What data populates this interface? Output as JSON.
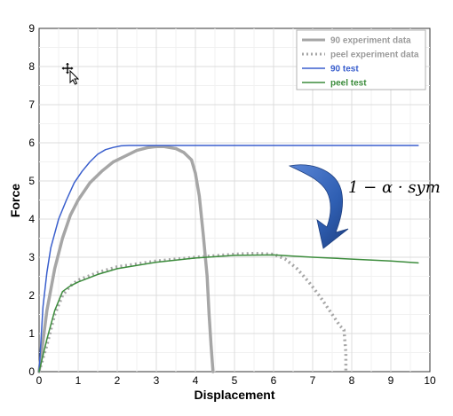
{
  "chart_data": {
    "type": "line",
    "xlabel": "Displacement",
    "ylabel": "Force",
    "xlim": [
      0,
      10
    ],
    "ylim": [
      0,
      9
    ],
    "xticks": [
      "0",
      "1",
      "2",
      "3",
      "4",
      "5",
      "6",
      "7",
      "8",
      "9",
      "10"
    ],
    "yticks": [
      "0",
      "1",
      "2",
      "3",
      "4",
      "5",
      "6",
      "7",
      "8",
      "9"
    ],
    "grid": true,
    "legend": "top-right",
    "annotation": {
      "text": "1 − α · sym",
      "arrow_color": "#2f5fb3"
    },
    "series": [
      {
        "name": "90 experiment data",
        "color": "#a6a6a6",
        "style": "solid-thick",
        "x": [
          0,
          0.2,
          0.4,
          0.6,
          0.8,
          1.0,
          1.3,
          1.6,
          1.9,
          2.2,
          2.5,
          2.8,
          3.0,
          3.2,
          3.5,
          3.7,
          3.9,
          4.0,
          4.1,
          4.2,
          4.3,
          4.35,
          4.4,
          4.45
        ],
        "y": [
          0,
          1.6,
          2.7,
          3.5,
          4.1,
          4.5,
          4.95,
          5.25,
          5.5,
          5.65,
          5.8,
          5.88,
          5.9,
          5.9,
          5.85,
          5.75,
          5.55,
          5.2,
          4.6,
          3.6,
          2.5,
          1.5,
          0.7,
          0
        ]
      },
      {
        "name": "peel experiment data",
        "color": "#a6a6a6",
        "style": "dotted",
        "x": [
          0,
          0.2,
          0.4,
          0.6,
          0.8,
          1.0,
          1.5,
          2.0,
          3.0,
          4.0,
          5.0,
          5.5,
          6.0,
          6.3,
          6.6,
          6.9,
          7.2,
          7.5,
          7.7,
          7.8,
          7.85,
          7.85
        ],
        "y": [
          0,
          0.7,
          1.5,
          2.0,
          2.25,
          2.4,
          2.6,
          2.75,
          2.9,
          3.0,
          3.08,
          3.1,
          3.08,
          2.95,
          2.7,
          2.35,
          1.95,
          1.5,
          1.2,
          1.1,
          0.5,
          0
        ]
      },
      {
        "name": "90 test",
        "color": "#3a5fcd",
        "style": "solid",
        "x": [
          0,
          0.1,
          0.2,
          0.3,
          0.5,
          0.7,
          0.9,
          1.1,
          1.3,
          1.5,
          1.7,
          1.9,
          2.1,
          2.3,
          2.5,
          3.0,
          5.0,
          7.0,
          9.7
        ],
        "y": [
          0,
          1.7,
          2.6,
          3.25,
          4.0,
          4.5,
          4.95,
          5.25,
          5.5,
          5.7,
          5.82,
          5.88,
          5.92,
          5.93,
          5.93,
          5.93,
          5.93,
          5.93,
          5.93
        ]
      },
      {
        "name": "peel test",
        "color": "#3c8c3c",
        "style": "solid",
        "x": [
          0,
          0.2,
          0.4,
          0.6,
          0.8,
          1.0,
          1.5,
          2.0,
          3.0,
          4.0,
          5.0,
          6.0,
          6.5,
          7.0,
          8.0,
          9.0,
          9.7
        ],
        "y": [
          0,
          0.85,
          1.6,
          2.1,
          2.25,
          2.35,
          2.55,
          2.7,
          2.87,
          2.98,
          3.05,
          3.06,
          3.03,
          3.0,
          2.95,
          2.9,
          2.85
        ]
      }
    ]
  }
}
